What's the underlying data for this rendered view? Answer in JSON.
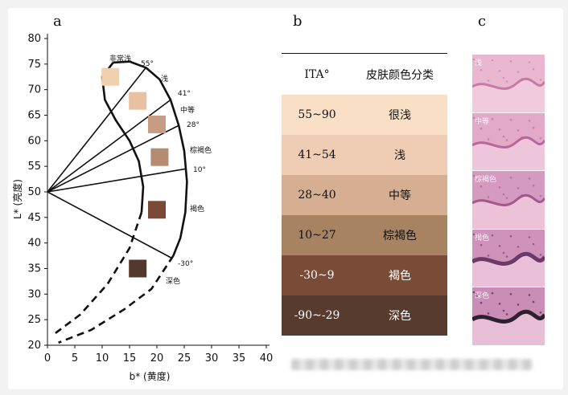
{
  "panels": {
    "a": "a",
    "b": "b",
    "c": "c"
  },
  "chart_data": {
    "type": "diagram",
    "xlabel": "b* (黄度)",
    "ylabel": "L* (亮度)",
    "xlim": [
      0,
      40
    ],
    "ylim": [
      20,
      80
    ],
    "x_ticks": [
      "0",
      "5",
      "10",
      "15",
      "20",
      "25",
      "30",
      "35",
      "40"
    ],
    "y_ticks": [
      "20",
      "25",
      "30",
      "35",
      "40",
      "45",
      "50",
      "55",
      "60",
      "65",
      "70",
      "75",
      "80"
    ],
    "origin": {
      "x": 0,
      "y": 50
    },
    "ray_labels": [
      "55°",
      "41°",
      "28°",
      "10°",
      "-30°"
    ],
    "category_labels": [
      "非常浅",
      "浅",
      "中等",
      "棕褐色",
      "褐色",
      "深色"
    ],
    "swatches": [
      {
        "x": 11.5,
        "y": 72.5,
        "color": "#f1d0ad"
      },
      {
        "x": 16.5,
        "y": 67.8,
        "color": "#e8c1a3"
      },
      {
        "x": 20.0,
        "y": 63.2,
        "color": "#c89c83"
      },
      {
        "x": 20.5,
        "y": 56.8,
        "color": "#b58c70"
      },
      {
        "x": 20.0,
        "y": 46.5,
        "color": "#7a4a36"
      },
      {
        "x": 16.5,
        "y": 35.0,
        "color": "#55382c"
      }
    ]
  },
  "table": {
    "headers": [
      "ITA°",
      "皮肤颜色分类"
    ],
    "rows": [
      {
        "range": "55~90",
        "label": "很浅",
        "color": "#f8dfc6"
      },
      {
        "range": "41~54",
        "label": "浅",
        "color": "#efcdb4"
      },
      {
        "range": "28~40",
        "label": "中等",
        "color": "#d6ae91"
      },
      {
        "range": "10~27",
        "label": "棕褐色",
        "color": "#a88362"
      },
      {
        "range": "-30~9",
        "label": "褐色",
        "color": "#7a4c38"
      },
      {
        "range": "-90~-29",
        "label": "深色",
        "color": "#573b2f"
      }
    ]
  },
  "histology": [
    {
      "label": "浅",
      "bg": "#e9b7cf",
      "accent": "#c77aa6"
    },
    {
      "label": "中等",
      "bg": "#e2a9c8",
      "accent": "#b9669a"
    },
    {
      "label": "棕褐色",
      "bg": "#d59ac0",
      "accent": "#a05a8a"
    },
    {
      "label": "褐色",
      "bg": "#cf93bb",
      "accent": "#6b3a68"
    },
    {
      "label": "深色",
      "bg": "#c98db6",
      "accent": "#2f1f33"
    }
  ]
}
